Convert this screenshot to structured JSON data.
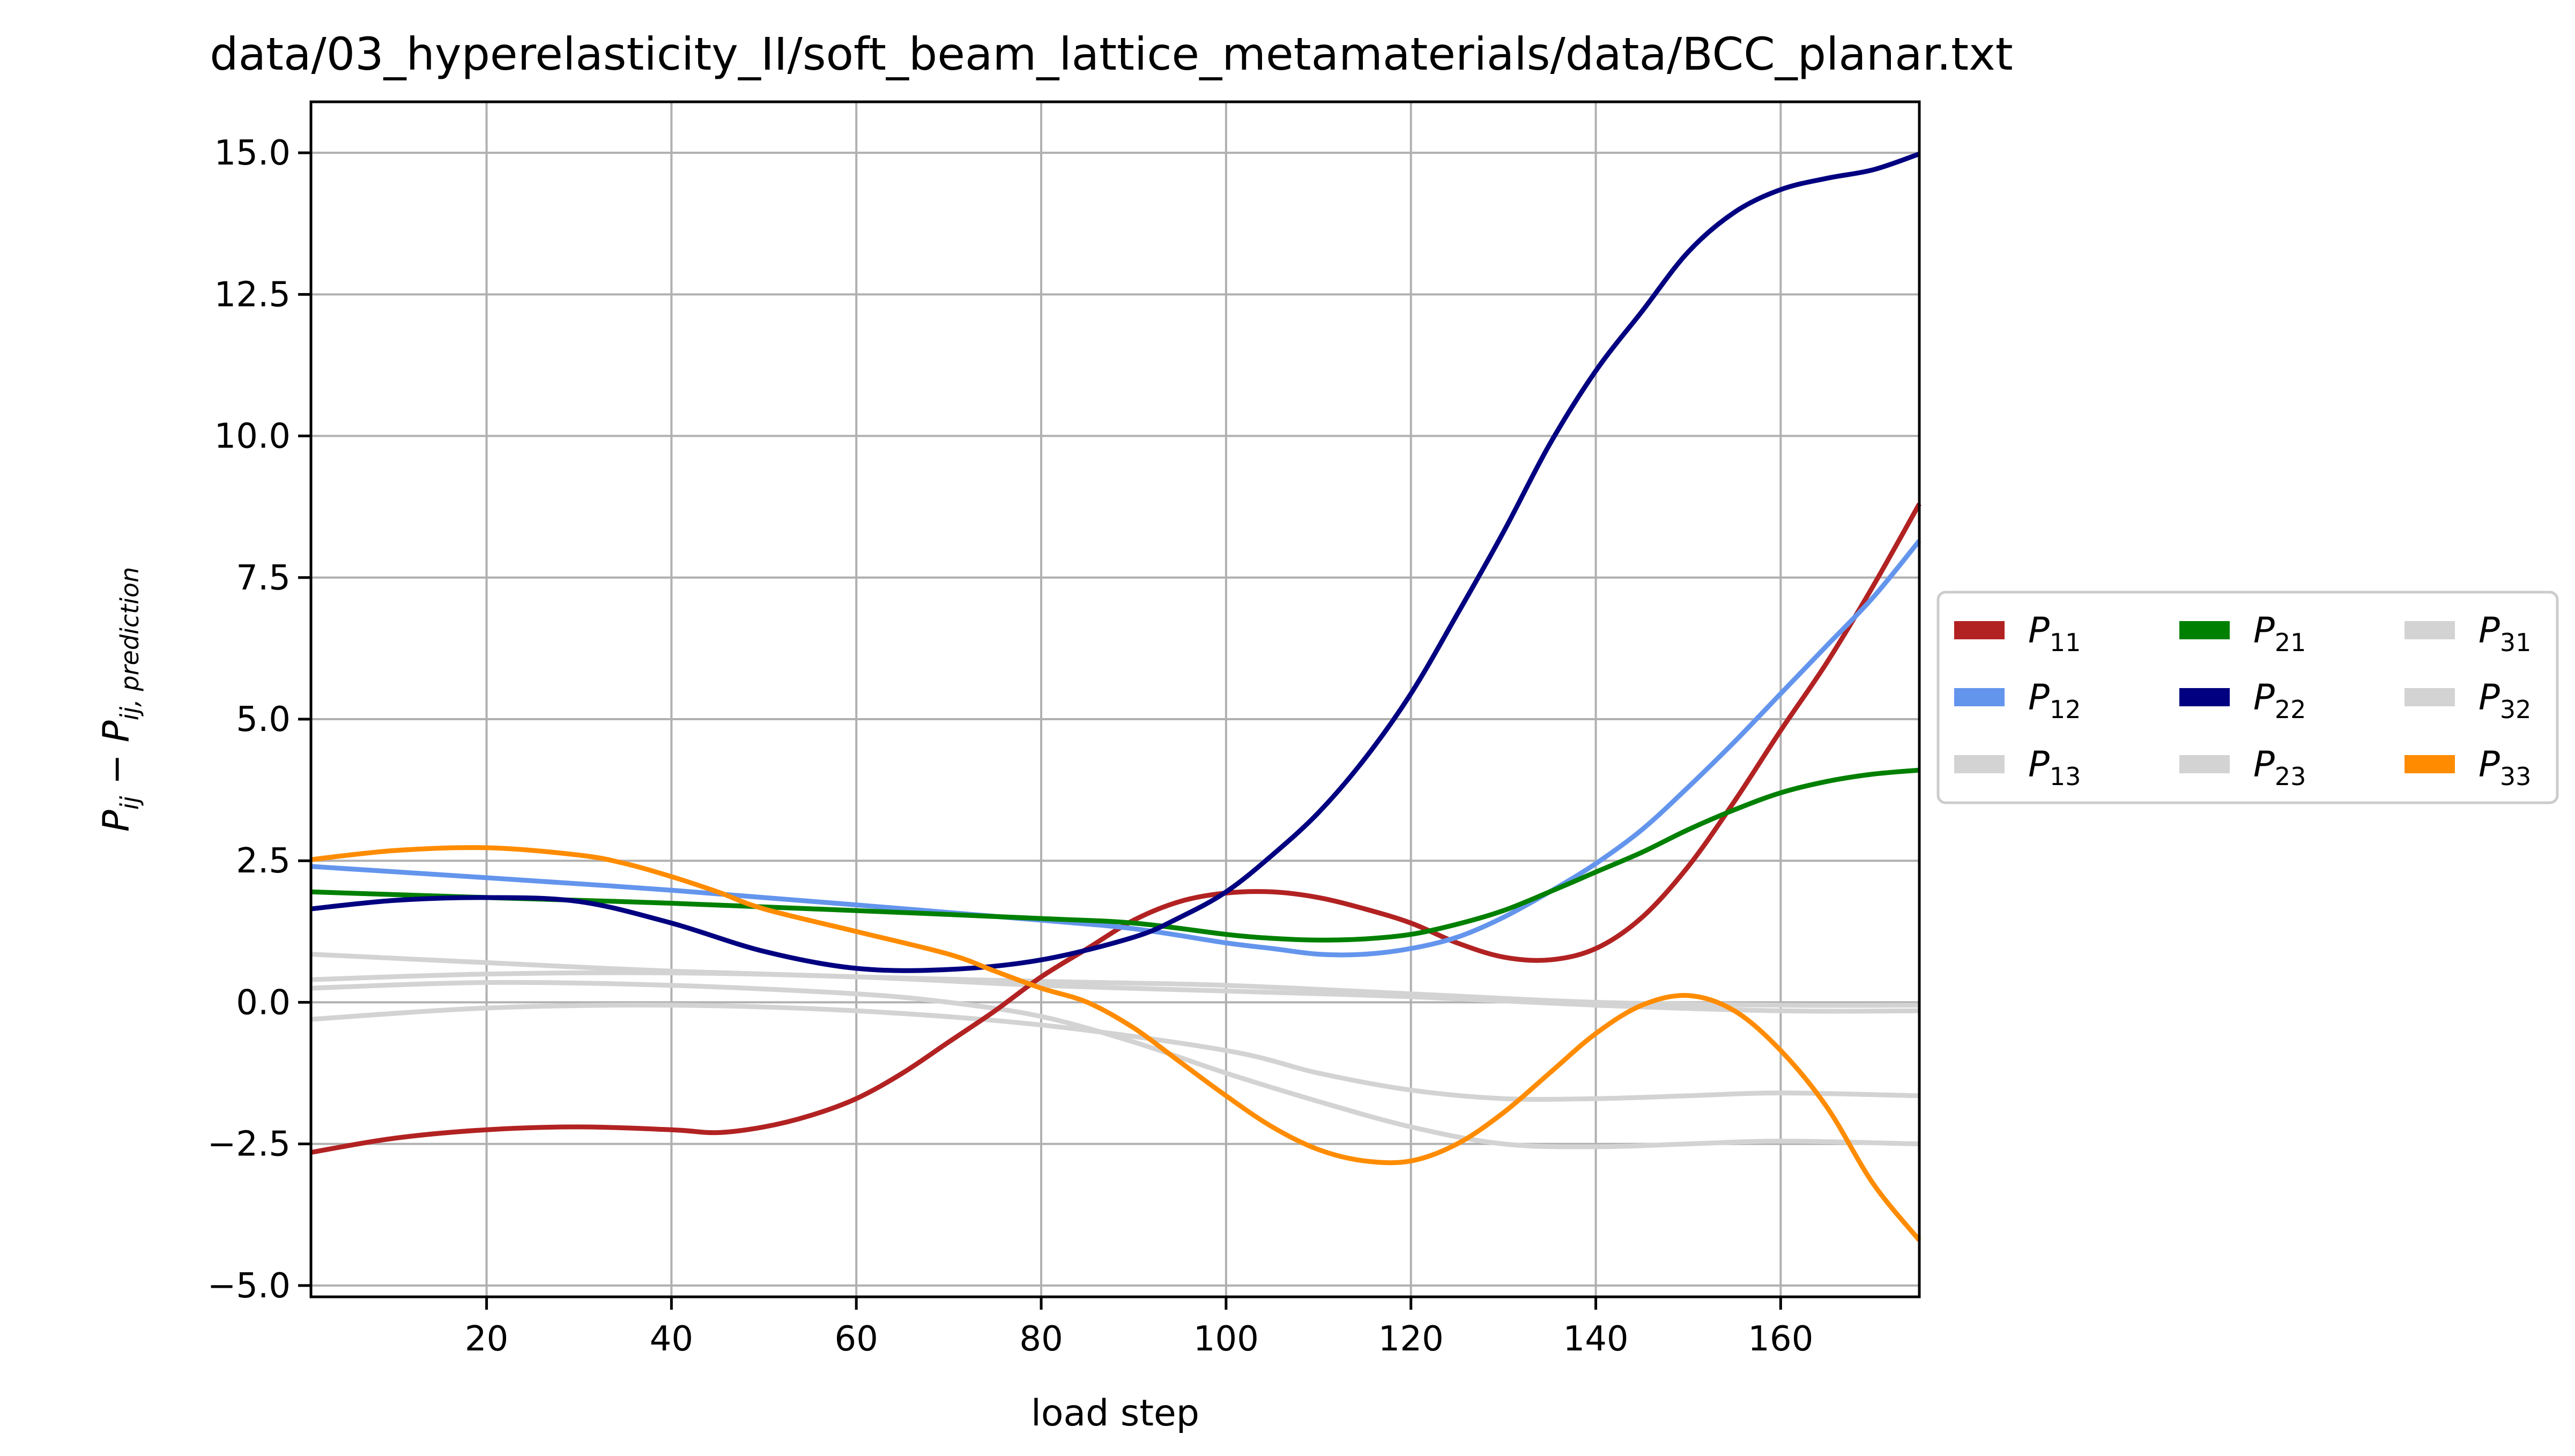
{
  "chart_data": {
    "type": "line",
    "title": "data/03_hyperelasticity_II/soft_beam_lattice_metamaterials/data/BCC_planar.txt",
    "xlabel": "load step",
    "ylabel": {
      "base": "P",
      "sub1": "ij",
      "minus": " − ",
      "base2": "P",
      "sub2": "ij, prediction"
    },
    "xlim": [
      1,
      175
    ],
    "ylim": [
      -5.2,
      15.9
    ],
    "xticks": [
      20,
      40,
      60,
      80,
      100,
      120,
      140,
      160
    ],
    "xtick_labels": [
      "20",
      "40",
      "60",
      "80",
      "100",
      "120",
      "140",
      "160"
    ],
    "yticks": [
      -5.0,
      -2.5,
      0.0,
      2.5,
      5.0,
      7.5,
      10.0,
      12.5,
      15.0
    ],
    "ytick_labels": [
      "−5.0",
      "−2.5",
      "0.0",
      "2.5",
      "5.0",
      "7.5",
      "10.0",
      "12.5",
      "15.0"
    ],
    "grid": true,
    "legend": {
      "placement": "outside-right",
      "columns": 3
    },
    "series": [
      {
        "name": {
          "base": "P",
          "sub": "11"
        },
        "color": "#b22222",
        "points": [
          [
            1,
            -2.65
          ],
          [
            10,
            -2.4
          ],
          [
            20,
            -2.25
          ],
          [
            30,
            -2.2
          ],
          [
            40,
            -2.25
          ],
          [
            45,
            -2.3
          ],
          [
            50,
            -2.2
          ],
          [
            55,
            -2.0
          ],
          [
            60,
            -1.7
          ],
          [
            65,
            -1.25
          ],
          [
            70,
            -0.7
          ],
          [
            75,
            -0.15
          ],
          [
            80,
            0.45
          ],
          [
            85,
            0.95
          ],
          [
            90,
            1.45
          ],
          [
            95,
            1.78
          ],
          [
            100,
            1.93
          ],
          [
            105,
            1.95
          ],
          [
            110,
            1.85
          ],
          [
            115,
            1.65
          ],
          [
            120,
            1.4
          ],
          [
            125,
            1.05
          ],
          [
            130,
            0.8
          ],
          [
            135,
            0.75
          ],
          [
            140,
            0.95
          ],
          [
            145,
            1.5
          ],
          [
            150,
            2.4
          ],
          [
            155,
            3.55
          ],
          [
            160,
            4.8
          ],
          [
            165,
            6.0
          ],
          [
            170,
            7.35
          ],
          [
            175,
            8.8
          ]
        ]
      },
      {
        "name": {
          "base": "P",
          "sub": "12"
        },
        "color": "#6495ed",
        "points": [
          [
            1,
            2.4
          ],
          [
            20,
            2.2
          ],
          [
            40,
            1.98
          ],
          [
            60,
            1.72
          ],
          [
            80,
            1.45
          ],
          [
            90,
            1.3
          ],
          [
            100,
            1.05
          ],
          [
            105,
            0.95
          ],
          [
            110,
            0.85
          ],
          [
            115,
            0.85
          ],
          [
            120,
            0.95
          ],
          [
            125,
            1.15
          ],
          [
            130,
            1.5
          ],
          [
            135,
            1.95
          ],
          [
            140,
            2.45
          ],
          [
            145,
            3.05
          ],
          [
            150,
            3.8
          ],
          [
            155,
            4.6
          ],
          [
            160,
            5.45
          ],
          [
            165,
            6.3
          ],
          [
            170,
            7.15
          ],
          [
            175,
            8.15
          ]
        ]
      },
      {
        "name": {
          "base": "P",
          "sub": "13"
        },
        "color": "#d3d3d3",
        "points": [
          [
            1,
            0.85
          ],
          [
            20,
            0.7
          ],
          [
            40,
            0.55
          ],
          [
            60,
            0.45
          ],
          [
            80,
            0.37
          ],
          [
            100,
            0.3
          ],
          [
            120,
            0.15
          ],
          [
            140,
            0.0
          ],
          [
            160,
            -0.05
          ],
          [
            175,
            -0.05
          ]
        ]
      },
      {
        "name": {
          "base": "P",
          "sub": "21"
        },
        "color": "#008000",
        "points": [
          [
            1,
            1.95
          ],
          [
            20,
            1.85
          ],
          [
            40,
            1.75
          ],
          [
            60,
            1.62
          ],
          [
            80,
            1.48
          ],
          [
            90,
            1.4
          ],
          [
            100,
            1.2
          ],
          [
            105,
            1.13
          ],
          [
            110,
            1.1
          ],
          [
            115,
            1.12
          ],
          [
            120,
            1.2
          ],
          [
            125,
            1.38
          ],
          [
            130,
            1.62
          ],
          [
            135,
            1.95
          ],
          [
            140,
            2.3
          ],
          [
            145,
            2.65
          ],
          [
            150,
            3.05
          ],
          [
            155,
            3.4
          ],
          [
            160,
            3.7
          ],
          [
            165,
            3.9
          ],
          [
            170,
            4.03
          ],
          [
            175,
            4.1
          ]
        ]
      },
      {
        "name": {
          "base": "P",
          "sub": "22"
        },
        "color": "#000080",
        "points": [
          [
            1,
            1.65
          ],
          [
            10,
            1.8
          ],
          [
            20,
            1.85
          ],
          [
            30,
            1.78
          ],
          [
            40,
            1.4
          ],
          [
            50,
            0.9
          ],
          [
            60,
            0.6
          ],
          [
            70,
            0.58
          ],
          [
            80,
            0.75
          ],
          [
            90,
            1.15
          ],
          [
            95,
            1.5
          ],
          [
            100,
            1.95
          ],
          [
            105,
            2.6
          ],
          [
            110,
            3.35
          ],
          [
            115,
            4.3
          ],
          [
            120,
            5.45
          ],
          [
            125,
            6.85
          ],
          [
            130,
            8.3
          ],
          [
            135,
            9.85
          ],
          [
            140,
            11.15
          ],
          [
            145,
            12.2
          ],
          [
            150,
            13.25
          ],
          [
            155,
            13.95
          ],
          [
            160,
            14.35
          ],
          [
            165,
            14.55
          ],
          [
            170,
            14.7
          ],
          [
            175,
            14.98
          ]
        ]
      },
      {
        "name": {
          "base": "P",
          "sub": "23"
        },
        "color": "#d3d3d3",
        "points": [
          [
            1,
            0.4
          ],
          [
            20,
            0.5
          ],
          [
            40,
            0.52
          ],
          [
            60,
            0.45
          ],
          [
            80,
            0.3
          ],
          [
            100,
            0.2
          ],
          [
            120,
            0.1
          ],
          [
            140,
            -0.05
          ],
          [
            160,
            -0.15
          ],
          [
            175,
            -0.15
          ]
        ]
      },
      {
        "name": {
          "base": "P",
          "sub": "31"
        },
        "color": "#d3d3d3",
        "points": [
          [
            1,
            -0.3
          ],
          [
            20,
            -0.1
          ],
          [
            40,
            -0.05
          ],
          [
            60,
            -0.15
          ],
          [
            80,
            -0.4
          ],
          [
            100,
            -0.85
          ],
          [
            110,
            -1.25
          ],
          [
            120,
            -1.55
          ],
          [
            130,
            -1.7
          ],
          [
            140,
            -1.7
          ],
          [
            150,
            -1.65
          ],
          [
            160,
            -1.6
          ],
          [
            175,
            -1.65
          ]
        ]
      },
      {
        "name": {
          "base": "P",
          "sub": "32"
        },
        "color": "#d3d3d3",
        "points": [
          [
            1,
            0.25
          ],
          [
            20,
            0.35
          ],
          [
            40,
            0.3
          ],
          [
            60,
            0.15
          ],
          [
            70,
            0.0
          ],
          [
            80,
            -0.25
          ],
          [
            90,
            -0.7
          ],
          [
            100,
            -1.25
          ],
          [
            110,
            -1.75
          ],
          [
            120,
            -2.2
          ],
          [
            130,
            -2.5
          ],
          [
            140,
            -2.55
          ],
          [
            150,
            -2.5
          ],
          [
            160,
            -2.45
          ],
          [
            175,
            -2.5
          ]
        ]
      },
      {
        "name": {
          "base": "P",
          "sub": "33"
        },
        "color": "#ff8c00",
        "points": [
          [
            1,
            2.52
          ],
          [
            10,
            2.68
          ],
          [
            20,
            2.73
          ],
          [
            30,
            2.6
          ],
          [
            35,
            2.45
          ],
          [
            40,
            2.22
          ],
          [
            45,
            1.95
          ],
          [
            50,
            1.65
          ],
          [
            60,
            1.25
          ],
          [
            70,
            0.85
          ],
          [
            75,
            0.55
          ],
          [
            80,
            0.25
          ],
          [
            85,
            0.0
          ],
          [
            90,
            -0.45
          ],
          [
            95,
            -1.05
          ],
          [
            100,
            -1.65
          ],
          [
            105,
            -2.2
          ],
          [
            110,
            -2.6
          ],
          [
            115,
            -2.8
          ],
          [
            120,
            -2.8
          ],
          [
            125,
            -2.5
          ],
          [
            130,
            -1.95
          ],
          [
            135,
            -1.25
          ],
          [
            140,
            -0.55
          ],
          [
            145,
            -0.05
          ],
          [
            150,
            0.12
          ],
          [
            155,
            -0.15
          ],
          [
            160,
            -0.85
          ],
          [
            165,
            -1.85
          ],
          [
            170,
            -3.2
          ],
          [
            175,
            -4.2
          ]
        ]
      }
    ]
  }
}
